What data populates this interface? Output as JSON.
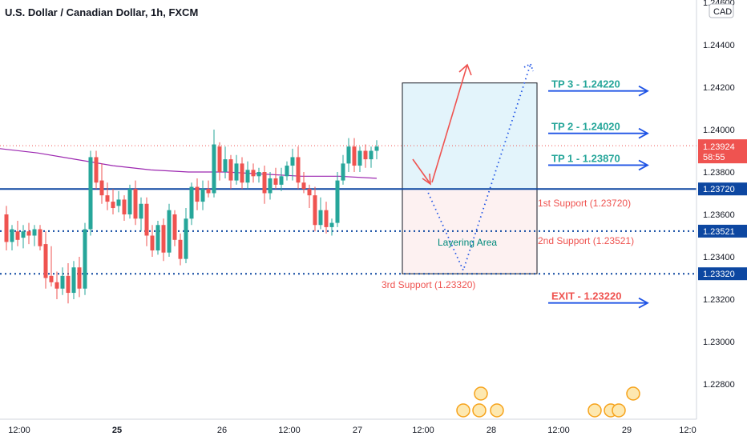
{
  "chart_data": {
    "type": "candlestick",
    "title": "U.S. Dollar / Canadian Dollar, 1h, FXCM",
    "currency": "CAD",
    "ylim": [
      1.227,
      1.246
    ],
    "y_ticks": [
      "1.24600",
      "1.24400",
      "1.24200",
      "1.24000",
      "1.23800",
      "1.23600",
      "1.23400",
      "1.23200",
      "1.23000",
      "1.22800"
    ],
    "x_ticks": [
      "12:00",
      "25",
      "26",
      "12:00",
      "27",
      "12:00",
      "28",
      "12:00",
      "29",
      "12:0"
    ],
    "current_price": "1.23924",
    "countdown": "58:55",
    "price_badges": [
      "1.23720",
      "1.23521",
      "1.23320"
    ],
    "candles": [
      {
        "o": 1.236,
        "h": 1.2364,
        "l": 1.2343,
        "c": 1.2347
      },
      {
        "o": 1.2347,
        "h": 1.2355,
        "l": 1.2343,
        "c": 1.2353
      },
      {
        "o": 1.2352,
        "h": 1.2357,
        "l": 1.2345,
        "c": 1.2348
      },
      {
        "o": 1.2349,
        "h": 1.2355,
        "l": 1.2344,
        "c": 1.2352
      },
      {
        "o": 1.2352,
        "h": 1.2356,
        "l": 1.2346,
        "c": 1.235
      },
      {
        "o": 1.235,
        "h": 1.2355,
        "l": 1.2345,
        "c": 1.2353
      },
      {
        "o": 1.2353,
        "h": 1.2355,
        "l": 1.2343,
        "c": 1.2345
      },
      {
        "o": 1.2346,
        "h": 1.2352,
        "l": 1.2325,
        "c": 1.233
      },
      {
        "o": 1.2331,
        "h": 1.2345,
        "l": 1.2326,
        "c": 1.2328
      },
      {
        "o": 1.2328,
        "h": 1.2333,
        "l": 1.232,
        "c": 1.2325
      },
      {
        "o": 1.2325,
        "h": 1.2335,
        "l": 1.2322,
        "c": 1.2331
      },
      {
        "o": 1.2331,
        "h": 1.2337,
        "l": 1.2318,
        "c": 1.2323
      },
      {
        "o": 1.2323,
        "h": 1.2338,
        "l": 1.232,
        "c": 1.2335
      },
      {
        "o": 1.2335,
        "h": 1.234,
        "l": 1.2321,
        "c": 1.2325
      },
      {
        "o": 1.2325,
        "h": 1.2356,
        "l": 1.2322,
        "c": 1.2353
      },
      {
        "o": 1.2353,
        "h": 1.239,
        "l": 1.235,
        "c": 1.2387
      },
      {
        "o": 1.2387,
        "h": 1.239,
        "l": 1.2372,
        "c": 1.2375
      },
      {
        "o": 1.2376,
        "h": 1.2384,
        "l": 1.2365,
        "c": 1.2369
      },
      {
        "o": 1.2369,
        "h": 1.2375,
        "l": 1.2362,
        "c": 1.2366
      },
      {
        "o": 1.2366,
        "h": 1.2372,
        "l": 1.236,
        "c": 1.2363
      },
      {
        "o": 1.2364,
        "h": 1.2371,
        "l": 1.2361,
        "c": 1.2367
      },
      {
        "o": 1.2367,
        "h": 1.2369,
        "l": 1.2357,
        "c": 1.236
      },
      {
        "o": 1.236,
        "h": 1.2374,
        "l": 1.2358,
        "c": 1.2372
      },
      {
        "o": 1.2372,
        "h": 1.2376,
        "l": 1.2355,
        "c": 1.2358
      },
      {
        "o": 1.2358,
        "h": 1.2368,
        "l": 1.2352,
        "c": 1.2365
      },
      {
        "o": 1.2365,
        "h": 1.2368,
        "l": 1.2345,
        "c": 1.235
      },
      {
        "o": 1.235,
        "h": 1.2355,
        "l": 1.234,
        "c": 1.2343
      },
      {
        "o": 1.2343,
        "h": 1.2357,
        "l": 1.2341,
        "c": 1.2355
      },
      {
        "o": 1.2355,
        "h": 1.2358,
        "l": 1.2338,
        "c": 1.2342
      },
      {
        "o": 1.2342,
        "h": 1.2365,
        "l": 1.234,
        "c": 1.2362
      },
      {
        "o": 1.236,
        "h": 1.2362,
        "l": 1.2345,
        "c": 1.2348
      },
      {
        "o": 1.2348,
        "h": 1.2351,
        "l": 1.2336,
        "c": 1.2339
      },
      {
        "o": 1.2339,
        "h": 1.2363,
        "l": 1.2337,
        "c": 1.2358
      },
      {
        "o": 1.2358,
        "h": 1.2375,
        "l": 1.2355,
        "c": 1.2373
      },
      {
        "o": 1.2373,
        "h": 1.2377,
        "l": 1.2362,
        "c": 1.2366
      },
      {
        "o": 1.2366,
        "h": 1.2376,
        "l": 1.2362,
        "c": 1.2372
      },
      {
        "o": 1.2372,
        "h": 1.2376,
        "l": 1.2368,
        "c": 1.237
      },
      {
        "o": 1.237,
        "h": 1.24,
        "l": 1.2368,
        "c": 1.2393
      },
      {
        "o": 1.2392,
        "h": 1.2394,
        "l": 1.2376,
        "c": 1.238
      },
      {
        "o": 1.238,
        "h": 1.2392,
        "l": 1.2377,
        "c": 1.2386
      },
      {
        "o": 1.2386,
        "h": 1.2388,
        "l": 1.2372,
        "c": 1.2376
      },
      {
        "o": 1.2376,
        "h": 1.2388,
        "l": 1.2374,
        "c": 1.2384
      },
      {
        "o": 1.2384,
        "h": 1.2387,
        "l": 1.2372,
        "c": 1.2375
      },
      {
        "o": 1.2375,
        "h": 1.2385,
        "l": 1.2372,
        "c": 1.2381
      },
      {
        "o": 1.2381,
        "h": 1.2384,
        "l": 1.2375,
        "c": 1.2378
      },
      {
        "o": 1.2378,
        "h": 1.2382,
        "l": 1.2375,
        "c": 1.238
      },
      {
        "o": 1.238,
        "h": 1.2383,
        "l": 1.2365,
        "c": 1.237
      },
      {
        "o": 1.237,
        "h": 1.238,
        "l": 1.2367,
        "c": 1.2377
      },
      {
        "o": 1.2377,
        "h": 1.2382,
        "l": 1.2372,
        "c": 1.2374
      },
      {
        "o": 1.2374,
        "h": 1.2382,
        "l": 1.2371,
        "c": 1.2378
      },
      {
        "o": 1.2378,
        "h": 1.2385,
        "l": 1.2376,
        "c": 1.2383
      },
      {
        "o": 1.2383,
        "h": 1.2391,
        "l": 1.2376,
        "c": 1.2387
      },
      {
        "o": 1.2387,
        "h": 1.2392,
        "l": 1.2372,
        "c": 1.2375
      },
      {
        "o": 1.2375,
        "h": 1.238,
        "l": 1.237,
        "c": 1.2372
      },
      {
        "o": 1.2372,
        "h": 1.2374,
        "l": 1.2363,
        "c": 1.2369
      },
      {
        "o": 1.2369,
        "h": 1.2373,
        "l": 1.2352,
        "c": 1.2355
      },
      {
        "o": 1.2355,
        "h": 1.2368,
        "l": 1.2353,
        "c": 1.2362
      },
      {
        "o": 1.2362,
        "h": 1.2366,
        "l": 1.2351,
        "c": 1.2354
      },
      {
        "o": 1.2354,
        "h": 1.2358,
        "l": 1.235,
        "c": 1.2356
      },
      {
        "o": 1.2356,
        "h": 1.238,
        "l": 1.2354,
        "c": 1.2376
      },
      {
        "o": 1.2376,
        "h": 1.2388,
        "l": 1.2374,
        "c": 1.2384
      },
      {
        "o": 1.2384,
        "h": 1.2396,
        "l": 1.238,
        "c": 1.2392
      },
      {
        "o": 1.2392,
        "h": 1.2396,
        "l": 1.238,
        "c": 1.2383
      },
      {
        "o": 1.2383,
        "h": 1.2392,
        "l": 1.238,
        "c": 1.239
      },
      {
        "o": 1.239,
        "h": 1.2393,
        "l": 1.2382,
        "c": 1.2386
      },
      {
        "o": 1.2386,
        "h": 1.2392,
        "l": 1.2382,
        "c": 1.239
      },
      {
        "o": 1.239,
        "h": 1.2395,
        "l": 1.2386,
        "c": 1.2392
      }
    ],
    "moving_average": [
      1.2391,
      1.2389,
      1.2386,
      1.2383,
      1.2381,
      1.238,
      1.238,
      1.2379,
      1.2378,
      1.2378,
      1.2377
    ],
    "levels": [
      {
        "price": 1.2372,
        "label": "1st Support (1.23720)",
        "style": "solid"
      },
      {
        "price": 1.23521,
        "label": "2nd Support (1.23521)",
        "style": "dotted"
      },
      {
        "price": 1.2332,
        "label": "3rd Support (1.23320)",
        "style": "dotted"
      }
    ],
    "targets": [
      {
        "price": 1.2422,
        "label": "TP 3 - 1.24220",
        "color": "#26a69a"
      },
      {
        "price": 1.2402,
        "label": "TP 2 - 1.24020",
        "color": "#26a69a"
      },
      {
        "price": 1.2387,
        "label": "TP 1 - 1.23870",
        "color": "#26a69a"
      },
      {
        "price": 1.2322,
        "label": "EXIT - 1.23220",
        "color": "#ef5350"
      }
    ],
    "zone_label": "Layering Area",
    "colors": {
      "up": "#26a69a",
      "down": "#ef5350",
      "ma": "#9c27b0",
      "level": "#0d47a1",
      "arrow": "#1e53e5"
    }
  }
}
